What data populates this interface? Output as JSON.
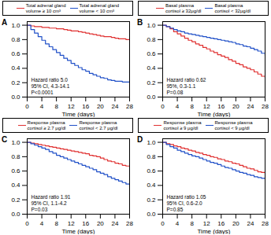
{
  "chart_data": [
    {
      "type": "step",
      "title": "A",
      "legend": "top",
      "xlabel": "Time (days)",
      "annotation": "Hazard ratio 5.0\n95% CI, 4.3-14.1\nP<0.0001",
      "x": [
        0,
        1,
        2,
        3,
        4,
        5,
        6,
        7,
        8,
        9,
        10,
        11,
        12,
        13,
        14,
        15,
        16,
        17,
        18,
        19,
        20,
        21,
        22,
        23,
        24,
        25,
        26,
        27,
        28
      ],
      "series": [
        {
          "name": "Total adrenal gland\nvolume ≥ 10 cm³",
          "color": "#e03030",
          "values": [
            1.0,
            0.99,
            0.98,
            0.98,
            0.97,
            0.97,
            0.96,
            0.96,
            0.95,
            0.95,
            0.94,
            0.93,
            0.92,
            0.92,
            0.91,
            0.9,
            0.89,
            0.88,
            0.87,
            0.86,
            0.85,
            0.84,
            0.84,
            0.83,
            0.82,
            0.81,
            0.81,
            0.8,
            0.8
          ]
        },
        {
          "name": "Total adrenal gland\nvolume < 10 cm³",
          "color": "#2050c8",
          "values": [
            1.0,
            0.94,
            0.89,
            0.84,
            0.79,
            0.74,
            0.7,
            0.66,
            0.62,
            0.58,
            0.54,
            0.51,
            0.47,
            0.44,
            0.41,
            0.38,
            0.36,
            0.33,
            0.31,
            0.29,
            0.27,
            0.26,
            0.24,
            0.23,
            0.22,
            0.22,
            0.21,
            0.21,
            0.21
          ]
        }
      ],
      "xlim": [
        0,
        28
      ],
      "xticks": [
        0,
        4,
        8,
        12,
        16,
        20,
        24,
        28
      ],
      "ylim": [
        0.0,
        1.05
      ],
      "yticks": [
        {
          "value": 0,
          "label": "0.0"
        },
        0.2,
        0.4,
        0.6,
        0.8,
        {
          "value": 1,
          "label": "1.0"
        }
      ]
    },
    {
      "type": "step",
      "title": "B",
      "legend": "top",
      "xlabel": "Time (days)",
      "annotation": "Hazard ratio 0.62\n95%, 0.3-1.1\nP=0.08",
      "x": [
        0,
        1,
        2,
        3,
        4,
        5,
        6,
        7,
        8,
        9,
        10,
        11,
        12,
        13,
        14,
        15,
        16,
        17,
        18,
        19,
        20,
        21,
        22,
        23,
        24,
        25,
        26,
        27,
        28
      ],
      "series": [
        {
          "name": "Basal plasma\ncortisol ≥ 32μg/dl",
          "color": "#e03030",
          "values": [
            1.0,
            0.98,
            0.95,
            0.91,
            0.88,
            0.85,
            0.82,
            0.79,
            0.77,
            0.74,
            0.72,
            0.69,
            0.67,
            0.64,
            0.62,
            0.59,
            0.57,
            0.55,
            0.52,
            0.5,
            0.47,
            0.45,
            0.42,
            0.4,
            0.38,
            0.35,
            0.32,
            0.29,
            0.27
          ]
        },
        {
          "name": "Basal plasma\ncortisol < 32μg/dl",
          "color": "#2050c8",
          "values": [
            1.0,
            0.98,
            0.96,
            0.94,
            0.92,
            0.91,
            0.89,
            0.88,
            0.87,
            0.86,
            0.85,
            0.84,
            0.83,
            0.82,
            0.81,
            0.8,
            0.79,
            0.78,
            0.77,
            0.76,
            0.74,
            0.73,
            0.71,
            0.7,
            0.68,
            0.66,
            0.64,
            0.61,
            0.58
          ]
        }
      ],
      "xlim": [
        0,
        28
      ],
      "xticks": [
        0,
        4,
        8,
        12,
        16,
        20,
        24,
        28
      ],
      "ylim": [
        0.0,
        1.05
      ],
      "yticks": [
        {
          "value": 0,
          "label": "0.0"
        },
        0.2,
        0.4,
        0.6,
        0.8,
        {
          "value": 1,
          "label": "1.0"
        }
      ]
    },
    {
      "type": "step",
      "title": "C",
      "legend": "top",
      "xlabel": "Time (days)",
      "annotation": "Hazard ratio 1.91\n95% CI, 1.1-4.2\nP=0.03",
      "x": [
        0,
        1,
        2,
        3,
        4,
        5,
        6,
        7,
        8,
        9,
        10,
        11,
        12,
        13,
        14,
        15,
        16,
        17,
        18,
        19,
        20,
        21,
        22,
        23,
        24,
        25,
        26,
        27,
        28
      ],
      "series": [
        {
          "name": "Response plasma\ncortisol ≥ 2.7 μg/dl",
          "color": "#e03030",
          "values": [
            1.0,
            0.99,
            0.98,
            0.97,
            0.96,
            0.95,
            0.94,
            0.93,
            0.92,
            0.91,
            0.9,
            0.89,
            0.88,
            0.87,
            0.86,
            0.85,
            0.84,
            0.82,
            0.81,
            0.8,
            0.78,
            0.76,
            0.74,
            0.73,
            0.71,
            0.7,
            0.68,
            0.67,
            0.66
          ]
        },
        {
          "name": "Response plasma\ncortisol < 2.7 μg/dl",
          "color": "#2050c8",
          "values": [
            1.0,
            0.98,
            0.96,
            0.94,
            0.92,
            0.9,
            0.87,
            0.85,
            0.82,
            0.8,
            0.78,
            0.76,
            0.74,
            0.72,
            0.7,
            0.68,
            0.66,
            0.64,
            0.62,
            0.59,
            0.57,
            0.55,
            0.52,
            0.5,
            0.48,
            0.46,
            0.44,
            0.42,
            0.4
          ]
        }
      ],
      "xlim": [
        0,
        28
      ],
      "xticks": [
        0,
        4,
        8,
        12,
        16,
        20,
        24,
        28
      ],
      "ylim": [
        0.0,
        1.05
      ],
      "yticks": [
        {
          "value": 0,
          "label": "0.0"
        },
        0.2,
        0.4,
        0.6,
        0.8,
        {
          "value": 1,
          "label": "1.0"
        }
      ]
    },
    {
      "type": "step",
      "title": "D",
      "legend": "top",
      "xlabel": "Time (days)",
      "annotation": "Hazard ratio 1.05\n95% CI, 0.6-2.0\nP=0.85",
      "x": [
        0,
        1,
        2,
        3,
        4,
        5,
        6,
        7,
        8,
        9,
        10,
        11,
        12,
        13,
        14,
        15,
        16,
        17,
        18,
        19,
        20,
        21,
        22,
        23,
        24,
        25,
        26,
        27,
        28
      ],
      "series": [
        {
          "name": "Response plasma\ncortisol ≥ 9 μg/dl",
          "color": "#e03030",
          "values": [
            1.0,
            0.98,
            0.97,
            0.95,
            0.94,
            0.92,
            0.91,
            0.89,
            0.88,
            0.86,
            0.85,
            0.83,
            0.82,
            0.8,
            0.79,
            0.77,
            0.76,
            0.74,
            0.73,
            0.71,
            0.7,
            0.68,
            0.66,
            0.64,
            0.63,
            0.61,
            0.59,
            0.58,
            0.56
          ]
        },
        {
          "name": "Response plasma\ncortisol < 9 μg/dl",
          "color": "#2050c8",
          "values": [
            1.0,
            0.97,
            0.94,
            0.92,
            0.89,
            0.87,
            0.85,
            0.83,
            0.81,
            0.8,
            0.78,
            0.76,
            0.74,
            0.72,
            0.71,
            0.69,
            0.67,
            0.65,
            0.64,
            0.62,
            0.6,
            0.58,
            0.57,
            0.55,
            0.54,
            0.52,
            0.51,
            0.5,
            0.49
          ]
        }
      ],
      "xlim": [
        0,
        28
      ],
      "xticks": [
        0,
        4,
        8,
        12,
        16,
        20,
        24,
        28
      ],
      "ylim": [
        0.0,
        1.05
      ],
      "yticks": [
        {
          "value": 0,
          "label": "0.0"
        },
        0.2,
        0.4,
        0.6,
        0.8,
        {
          "value": 1,
          "label": "1.0"
        }
      ]
    }
  ]
}
